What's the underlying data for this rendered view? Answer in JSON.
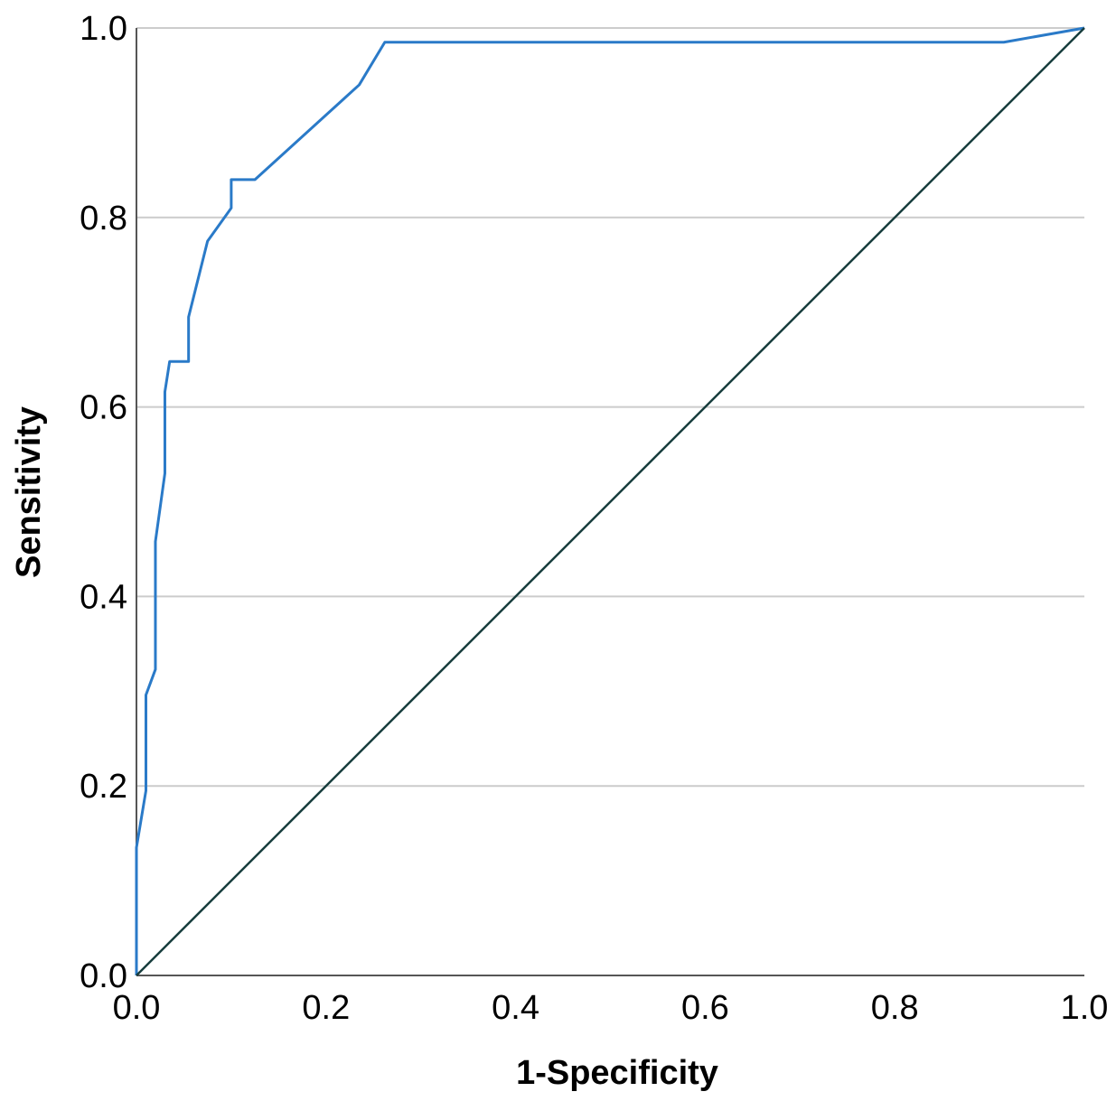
{
  "chart_data": {
    "type": "line",
    "title": "",
    "xlabel": "1-Specificity",
    "ylabel": "Sensitivity",
    "xlim": [
      0,
      1
    ],
    "ylim": [
      0,
      1
    ],
    "x_ticks": [
      "0.0",
      "0.2",
      "0.4",
      "0.6",
      "0.8",
      "1.0"
    ],
    "y_ticks": [
      "0.0",
      "0.2",
      "0.4",
      "0.6",
      "0.8",
      "1.0"
    ],
    "grid": "horizontal",
    "legend": "none",
    "colors": {
      "roc": "#2a7ac8",
      "reference": "#173d3d",
      "grid": "#cccccc",
      "axis": "#555555"
    },
    "series": [
      {
        "x": [
          0.0,
          0.0,
          0.0,
          0.01,
          0.01,
          0.02,
          0.02,
          0.03,
          0.03,
          0.035,
          0.055,
          0.055,
          0.075,
          0.1,
          0.1,
          0.125,
          0.235,
          0.262,
          0.915,
          1.0
        ],
        "y": [
          0.0,
          0.13,
          0.135,
          0.195,
          0.296,
          0.323,
          0.458,
          0.53,
          0.616,
          0.648,
          0.648,
          0.695,
          0.775,
          0.81,
          0.84,
          0.84,
          0.94,
          0.985,
          0.985,
          1.0
        ]
      },
      {
        "x": [
          0.0,
          1.0
        ],
        "y": [
          0.0,
          1.0
        ]
      }
    ]
  }
}
